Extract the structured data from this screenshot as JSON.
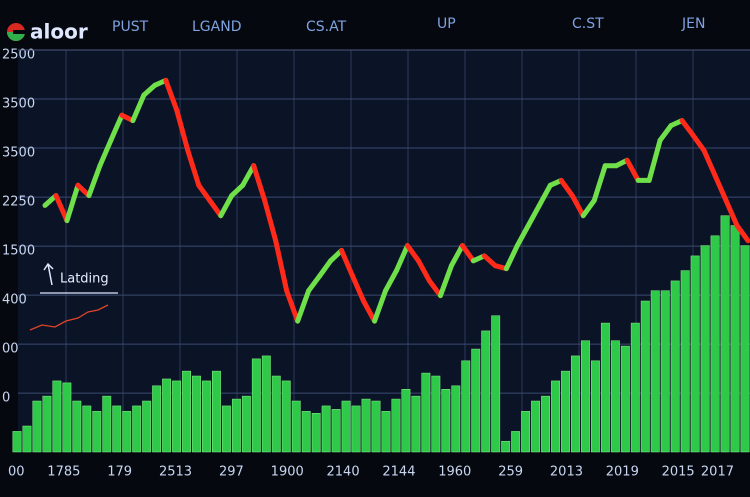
{
  "header": {
    "logo": "aloor",
    "menu": [
      "PUST",
      "LGAND",
      "CS.AT",
      "UP",
      "C.ST",
      "JEN"
    ]
  },
  "chart_data": {
    "type": "price-volume",
    "annotation": "Latding",
    "ylim": [
      -0.2,
      8
    ],
    "yticks": [
      {
        "value": 8,
        "label": "2500"
      },
      {
        "value": 7,
        "label": "3500"
      },
      {
        "value": 6,
        "label": "3500"
      },
      {
        "value": 5,
        "label": "2250"
      },
      {
        "value": 4,
        "label": "1500"
      },
      {
        "value": 3,
        "label": "400"
      },
      {
        "value": 2,
        "label": "00"
      },
      {
        "value": 1,
        "label": "0"
      }
    ],
    "categories": [
      "00",
      "1785",
      "179",
      "2513",
      "297",
      "1900",
      "2140",
      "2144",
      "1960",
      "259",
      "2013",
      "2019",
      "2015",
      "2017"
    ],
    "grid": true,
    "up_color": "#6fe04a",
    "down_color": "#ff2a1a",
    "volume_color": "#2fc94a",
    "price": [
      4.83,
      5.03,
      4.52,
      5.24,
      5.03,
      5.64,
      6.16,
      6.67,
      6.56,
      7.08,
      7.28,
      7.38,
      6.77,
      5.95,
      5.24,
      4.93,
      4.62,
      5.03,
      5.24,
      5.64,
      4.93,
      4.11,
      3.09,
      2.47,
      3.09,
      3.39,
      3.7,
      3.91,
      3.39,
      2.88,
      2.47,
      3.09,
      3.5,
      4.01,
      3.7,
      3.29,
      2.99,
      3.6,
      4.01,
      3.7,
      3.8,
      3.6,
      3.54,
      4.01,
      4.42,
      4.83,
      5.24,
      5.34,
      5.03,
      4.62,
      4.93,
      5.64,
      5.64,
      5.75,
      5.34,
      5.34,
      6.16,
      6.46,
      6.56,
      6.26,
      5.95,
      5.44,
      4.93,
      4.42,
      4.11
    ],
    "volume": [
      0.22,
      0.33,
      0.84,
      0.94,
      1.25,
      1.21,
      0.84,
      0.74,
      0.63,
      0.94,
      0.74,
      0.63,
      0.74,
      0.84,
      1.15,
      1.29,
      1.25,
      1.45,
      1.35,
      1.25,
      1.45,
      0.74,
      0.88,
      0.94,
      1.7,
      1.76,
      1.35,
      1.25,
      0.84,
      0.63,
      0.59,
      0.74,
      0.67,
      0.84,
      0.74,
      0.88,
      0.84,
      0.63,
      0.88,
      1.08,
      0.94,
      1.41,
      1.35,
      1.08,
      1.15,
      1.66,
      1.9,
      2.27,
      2.58,
      0.02,
      0.22,
      0.63,
      0.84,
      0.94,
      1.25,
      1.45,
      1.76,
      2.07,
      1.66,
      2.43,
      2.07,
      1.96,
      2.43,
      2.88,
      3.09,
      3.09,
      3.29,
      3.5,
      3.8,
      4.01,
      4.21,
      4.62,
      4.42,
      4.01
    ]
  }
}
